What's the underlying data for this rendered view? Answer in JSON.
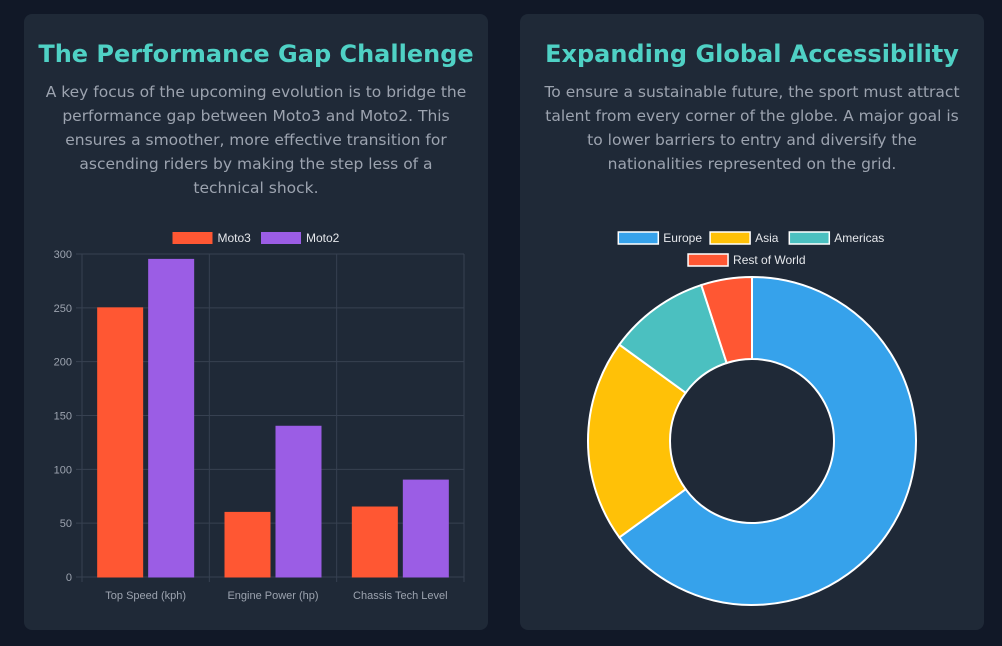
{
  "colors": {
    "page_bg": "#111827",
    "card_bg": "#1f2937",
    "title": "#4fd1c5",
    "text": "#9ca3af",
    "grid": "#374151"
  },
  "left_card": {
    "title": "The Performance Gap Challenge",
    "description": "A key focus of the upcoming evolution is to bridge the performance gap between Moto3 and Moto2. This ensures a smoother, more effective transition for ascending riders by making the step less of a technical shock."
  },
  "right_card": {
    "title": "Expanding Global Accessibility",
    "description": "To ensure a sustainable future, the sport must attract talent from every corner of the globe. A major goal is to lower barriers to entry and diversify the nationalities represented on the grid."
  },
  "chart_data": [
    {
      "type": "bar",
      "categories": [
        "Top Speed (kph)",
        "Engine Power (hp)",
        "Chassis Tech Level"
      ],
      "series": [
        {
          "name": "Moto3",
          "values": [
            250,
            60,
            65
          ],
          "color": "#ff5733"
        },
        {
          "name": "Moto2",
          "values": [
            295,
            140,
            90
          ],
          "color": "#9b5de5"
        }
      ],
      "ylim": [
        0,
        300
      ],
      "yticks": [
        "0",
        "50",
        "100",
        "150",
        "200",
        "250",
        "300"
      ],
      "legend": "top",
      "grid": true
    },
    {
      "type": "pie",
      "variant": "doughnut",
      "labels": [
        "Europe",
        "Asia",
        "Americas",
        "Rest of World"
      ],
      "values": [
        65,
        20,
        10,
        5
      ],
      "colors": [
        "#36a2eb",
        "#ffc107",
        "#4bc0c0",
        "#ff5733"
      ],
      "legend": "top"
    }
  ]
}
